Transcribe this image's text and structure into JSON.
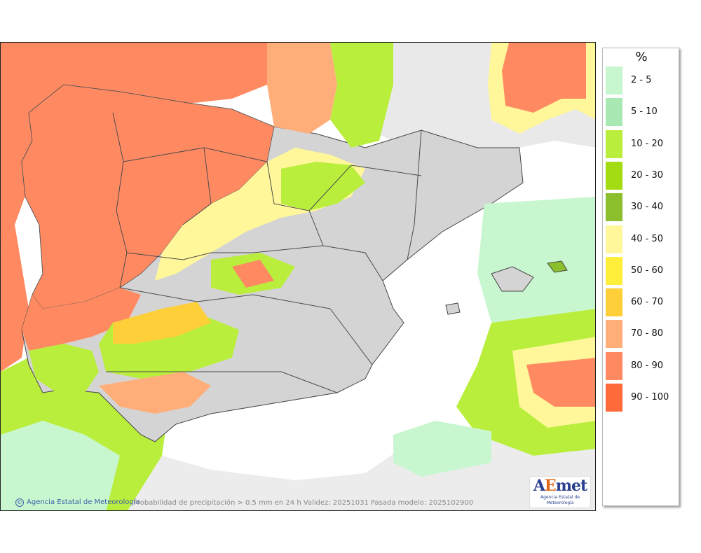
{
  "map": {
    "title_caption": "Probabilidad de precipitación > 0.5 mm en 24 h Validez: 20251031 Pasada modelo: 2025102900",
    "credit": "Agencia Estatal de Meteorología",
    "credit_symbol": "©",
    "logo": {
      "word_a": "A",
      "word_e": "E",
      "word_rest": "met",
      "subtitle": "Agencia Estatal de Meteorología"
    },
    "colors": {
      "sea": "#ffffff",
      "land_outside": "#ededed",
      "relief": "#cfcfcf",
      "borders": "#555555"
    }
  },
  "legend": {
    "unit": "%",
    "items": [
      {
        "label": "2 - 5",
        "color": "#c8f7cf"
      },
      {
        "label": "5 - 10",
        "color": "#a9e8b3"
      },
      {
        "label": "10 - 20",
        "color": "#b9ee3c"
      },
      {
        "label": "20 - 30",
        "color": "#a3dc12"
      },
      {
        "label": "30 - 40",
        "color": "#8cbf2d"
      },
      {
        "label": "40 - 50",
        "color": "#fff79a"
      },
      {
        "label": "50 - 60",
        "color": "#ffef3a"
      },
      {
        "label": "60 - 70",
        "color": "#ffcf3a"
      },
      {
        "label": "70 - 80",
        "color": "#ffae7a"
      },
      {
        "label": "80 - 90",
        "color": "#ff8a62"
      },
      {
        "label": "90 - 100",
        "color": "#ff6a3a"
      }
    ]
  }
}
